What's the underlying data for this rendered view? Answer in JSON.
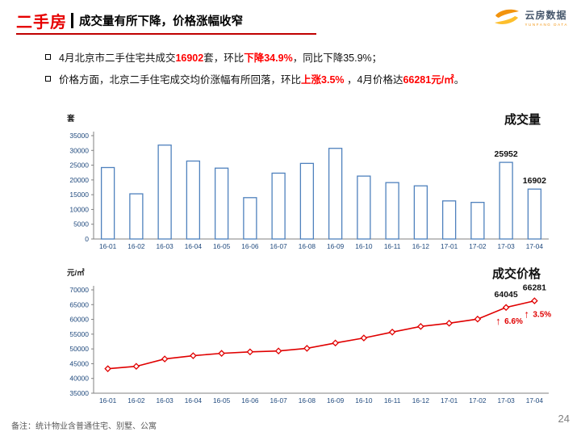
{
  "header": {
    "category": "二手房",
    "title": "成交量有所下降，价格涨幅收窄",
    "logo": {
      "name": "云房数据",
      "sub": "YUNFANG DATA"
    }
  },
  "colors": {
    "accent_red": "#e60000",
    "logo_orange": "#f2930d",
    "logo_yellow": "#fdbf2d",
    "axis_blue": "#1f497d"
  },
  "bullets": [
    {
      "segments": [
        {
          "text": "4月北京市二手住宅共成交",
          "style": "normal"
        },
        {
          "text": "16902",
          "style": "red-bold"
        },
        {
          "text": "套，环比",
          "style": "normal"
        },
        {
          "text": "下降34.9%",
          "style": "red-bold"
        },
        {
          "text": "，同比下降35.9%；",
          "style": "normal"
        }
      ]
    },
    {
      "segments": [
        {
          "text": "价格方面，北京二手住宅成交均价涨幅有所回落，环比",
          "style": "normal"
        },
        {
          "text": "上涨3.5%",
          "style": "red-bold"
        },
        {
          "text": " ，4月价格达",
          "style": "normal"
        },
        {
          "text": "66281元/㎡",
          "style": "red-bold"
        },
        {
          "text": "。",
          "style": "normal"
        }
      ]
    }
  ],
  "chart_data": [
    {
      "type": "bar",
      "title": "成交量",
      "ylabel": "套",
      "categories": [
        "16-01",
        "16-02",
        "16-03",
        "16-04",
        "16-05",
        "16-06",
        "16-07",
        "16-08",
        "16-09",
        "16-10",
        "16-11",
        "16-12",
        "17-01",
        "17-02",
        "17-03",
        "17-04"
      ],
      "values": [
        24200,
        15300,
        31800,
        26400,
        24000,
        14000,
        22300,
        25600,
        30700,
        21300,
        19100,
        18000,
        12900,
        12400,
        25952,
        16902
      ],
      "ylim": [
        0,
        35000
      ],
      "ytick_step": 5000,
      "grid": false,
      "legend": "none",
      "bar_fill": "#ffffff",
      "bar_stroke": "#4f81bd",
      "axis_color": "#1f497d",
      "annotations": [
        {
          "index": 14,
          "label": "25952"
        },
        {
          "index": 15,
          "label": "16902"
        }
      ]
    },
    {
      "type": "line",
      "title": "成交价格",
      "ylabel": "元/㎡",
      "categories": [
        "16-01",
        "16-02",
        "16-03",
        "16-04",
        "16-05",
        "16-06",
        "16-07",
        "16-08",
        "16-09",
        "16-10",
        "16-11",
        "16-12",
        "17-01",
        "17-02",
        "17-03",
        "17-04"
      ],
      "values": [
        43300,
        44100,
        46600,
        47700,
        48500,
        49000,
        49300,
        50200,
        52000,
        53700,
        55700,
        57600,
        58700,
        60100,
        64045,
        66281
      ],
      "ylim": [
        35000,
        70000
      ],
      "ytick_step": 5000,
      "grid": false,
      "legend": "none",
      "line_color": "#e00000",
      "marker": "diamond",
      "axis_color": "#1f497d",
      "annotations": [
        {
          "index": 14,
          "label": "64045",
          "pct": "6.6%",
          "arrow": "↑"
        },
        {
          "index": 15,
          "label": "66281",
          "pct": "3.5%",
          "arrow": "↑"
        }
      ]
    }
  ],
  "footer": {
    "note": "备注：统计物业含普通住宅、别墅、公寓",
    "page": "24"
  }
}
